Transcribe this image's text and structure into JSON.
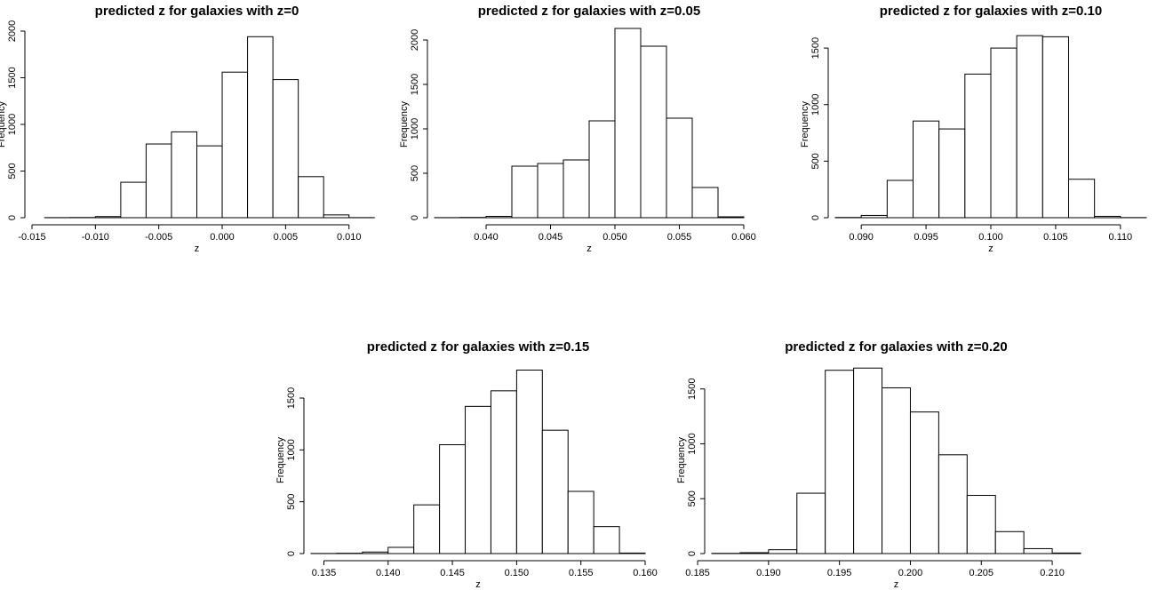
{
  "chart_data": [
    {
      "type": "bar",
      "title": "predicted z for galaxies with z=0",
      "xlabel": "z",
      "ylabel": "Frequency",
      "xlim": [
        -0.015,
        0.011
      ],
      "ylim": [
        0,
        2000
      ],
      "xticks": [
        -0.015,
        -0.01,
        -0.005,
        0.0,
        0.005,
        0.01
      ],
      "xtick_labels": [
        "-0.015",
        "-0.010",
        "-0.005",
        "0.000",
        "0.005",
        "0.010"
      ],
      "yticks": [
        0,
        500,
        1000,
        1500,
        2000
      ],
      "ytick_labels": [
        "0",
        "500",
        "1000",
        "1500",
        "2000"
      ],
      "bin_width": 0.002,
      "bin_starts": [
        -0.014,
        -0.012,
        -0.01,
        -0.008,
        -0.006,
        -0.004,
        -0.002,
        0.0,
        0.002,
        0.004,
        0.006,
        0.008,
        0.01
      ],
      "values": [
        1,
        2,
        12,
        380,
        790,
        920,
        770,
        1560,
        1940,
        1480,
        440,
        30,
        1
      ]
    },
    {
      "type": "bar",
      "title": "predicted z for galaxies with z=0.05",
      "xlabel": "z",
      "ylabel": "Frequency",
      "xlim": [
        0.036,
        0.06
      ],
      "ylim": [
        0,
        2100
      ],
      "xticks": [
        0.04,
        0.045,
        0.05,
        0.055,
        0.06
      ],
      "xtick_labels": [
        "0.040",
        "0.045",
        "0.050",
        "0.055",
        "0.060"
      ],
      "yticks": [
        0,
        500,
        1000,
        1500,
        2000
      ],
      "ytick_labels": [
        "0",
        "500",
        "1000",
        "1500",
        "2000"
      ],
      "bin_width": 0.002,
      "bin_starts": [
        0.036,
        0.038,
        0.04,
        0.042,
        0.044,
        0.046,
        0.048,
        0.05,
        0.052,
        0.054,
        0.056,
        0.058
      ],
      "values": [
        1,
        3,
        15,
        580,
        610,
        650,
        1090,
        2130,
        1930,
        1120,
        340,
        10
      ]
    },
    {
      "type": "bar",
      "title": "predicted z for galaxies with z=0.10",
      "xlabel": "z",
      "ylabel": "Frequency",
      "xlim": [
        0.088,
        0.112
      ],
      "ylim": [
        0,
        1650
      ],
      "xticks": [
        0.09,
        0.095,
        0.1,
        0.105,
        0.11
      ],
      "xtick_labels": [
        "0.090",
        "0.095",
        "0.100",
        "0.105",
        "0.110"
      ],
      "yticks": [
        0,
        500,
        1000,
        1500
      ],
      "ytick_labels": [
        "0",
        "500",
        "1000",
        "1500"
      ],
      "bin_width": 0.002,
      "bin_starts": [
        0.088,
        0.09,
        0.092,
        0.094,
        0.096,
        0.098,
        0.1,
        0.102,
        0.104,
        0.106,
        0.108,
        0.11
      ],
      "values": [
        2,
        20,
        330,
        855,
        785,
        1270,
        1500,
        1610,
        1600,
        340,
        12,
        1
      ]
    },
    {
      "type": "bar",
      "title": "predicted z for galaxies with z=0.15",
      "xlabel": "z",
      "ylabel": "Frequency",
      "xlim": [
        0.134,
        0.16
      ],
      "ylim": [
        0,
        1800
      ],
      "xticks": [
        0.135,
        0.14,
        0.145,
        0.15,
        0.155,
        0.16
      ],
      "xtick_labels": [
        "0.135",
        "0.140",
        "0.145",
        "0.150",
        "0.155",
        "0.160"
      ],
      "yticks": [
        0,
        500,
        1000,
        1500
      ],
      "ytick_labels": [
        "0",
        "500",
        "1000",
        "1500"
      ],
      "bin_width": 0.002,
      "bin_starts": [
        0.134,
        0.136,
        0.138,
        0.14,
        0.142,
        0.144,
        0.146,
        0.148,
        0.15,
        0.152,
        0.154,
        0.156,
        0.158
      ],
      "values": [
        1,
        3,
        15,
        60,
        470,
        1050,
        1420,
        1570,
        1770,
        1190,
        600,
        260,
        5
      ]
    },
    {
      "type": "bar",
      "title": "predicted z for galaxies with z=0.20",
      "xlabel": "z",
      "ylabel": "Frequency",
      "xlim": [
        0.186,
        0.212
      ],
      "ylim": [
        0,
        1700
      ],
      "xticks": [
        0.185,
        0.19,
        0.195,
        0.2,
        0.205,
        0.21
      ],
      "xtick_labels": [
        "0.185",
        "0.190",
        "0.195",
        "0.200",
        "0.205",
        "0.210"
      ],
      "yticks": [
        0,
        500,
        1000,
        1500
      ],
      "ytick_labels": [
        "0",
        "500",
        "1000",
        "1500"
      ],
      "bin_width": 0.002,
      "bin_starts": [
        0.186,
        0.188,
        0.19,
        0.192,
        0.194,
        0.196,
        0.198,
        0.2,
        0.202,
        0.204,
        0.206,
        0.208,
        0.21
      ],
      "values": [
        2,
        8,
        35,
        550,
        1670,
        1690,
        1510,
        1290,
        900,
        530,
        200,
        45,
        5
      ]
    }
  ]
}
